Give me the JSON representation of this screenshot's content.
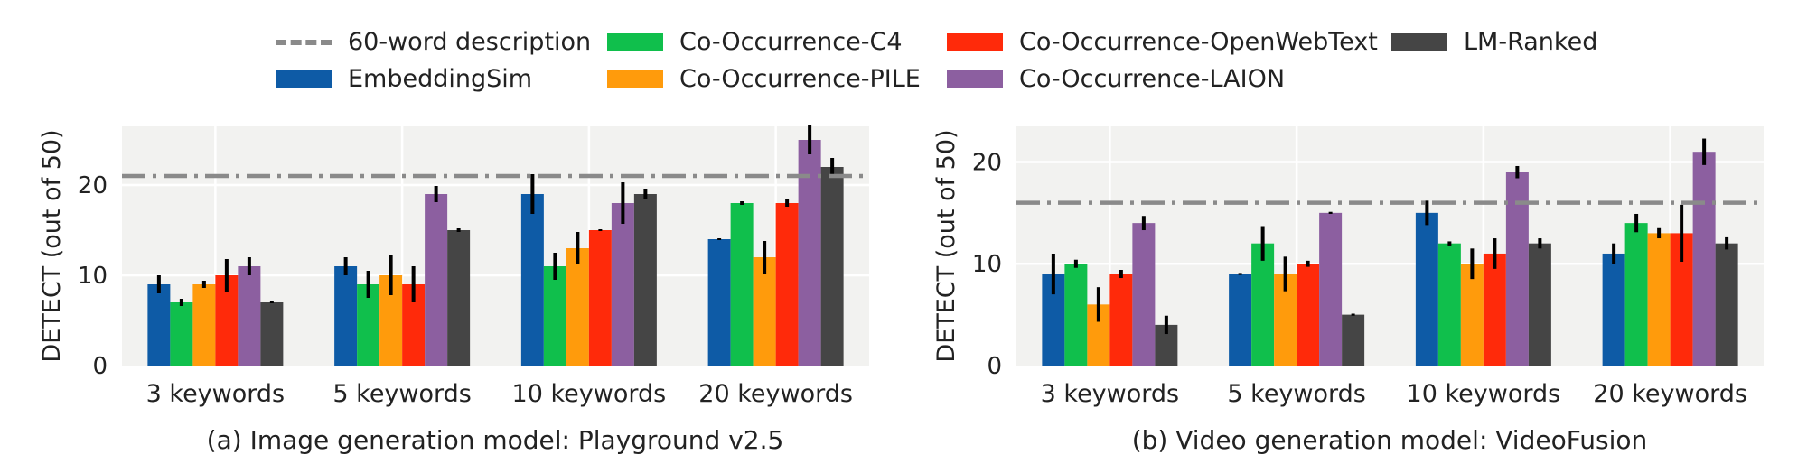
{
  "legend": {
    "items": [
      {
        "label": "60-word description",
        "kind": "line",
        "color": "#8a8a8a"
      },
      {
        "label": "EmbeddingSim",
        "kind": "box",
        "color": "#0e5ba6"
      },
      {
        "label": "Co-Occurrence-C4",
        "kind": "box",
        "color": "#10bf4c"
      },
      {
        "label": "Co-Occurrence-PILE",
        "kind": "box",
        "color": "#ff9b0c"
      },
      {
        "label": "Co-Occurrence-OpenWebText",
        "kind": "box",
        "color": "#ff2a0a"
      },
      {
        "label": "Co-Occurrence-LAION",
        "kind": "box",
        "color": "#8c5fa0"
      },
      {
        "label": "LM-Ranked",
        "kind": "box",
        "color": "#454545"
      }
    ]
  },
  "chart_data": [
    {
      "type": "bar",
      "caption": "(a) Image generation model: Playground v2.5",
      "ylabel": "DETECT (out of 50)",
      "ylim": [
        0,
        26.5
      ],
      "yticks": [
        0,
        10,
        20
      ],
      "categories": [
        "3 keywords",
        "5 keywords",
        "10 keywords",
        "20 keywords"
      ],
      "reference_line": {
        "name": "60-word description",
        "value": 21
      },
      "series": [
        {
          "name": "EmbeddingSim",
          "color": "#0e5ba6",
          "values": [
            9,
            11,
            19,
            14
          ],
          "errors": [
            1,
            1,
            2.2,
            0.1
          ]
        },
        {
          "name": "Co-Occurrence-C4",
          "color": "#10bf4c",
          "values": [
            7,
            9,
            11,
            18
          ],
          "errors": [
            0.4,
            1.5,
            1.5,
            0.2
          ]
        },
        {
          "name": "Co-Occurrence-PILE",
          "color": "#ff9b0c",
          "values": [
            9,
            10,
            13,
            12
          ],
          "errors": [
            0.4,
            2.2,
            1.8,
            1.8
          ]
        },
        {
          "name": "Co-Occurrence-OpenWebText",
          "color": "#ff2a0a",
          "values": [
            10,
            9,
            15,
            18
          ],
          "errors": [
            1.8,
            2,
            0.1,
            0.4
          ]
        },
        {
          "name": "Co-Occurrence-LAION",
          "color": "#8c5fa0",
          "values": [
            11,
            19,
            18,
            25
          ],
          "errors": [
            1,
            0.9,
            2.3,
            1.6
          ]
        },
        {
          "name": "LM-Ranked",
          "color": "#454545",
          "values": [
            7,
            15,
            19,
            22
          ],
          "errors": [
            0.1,
            0.2,
            0.6,
            1
          ]
        }
      ]
    },
    {
      "type": "bar",
      "caption": "(b) Video generation model: VideoFusion",
      "ylabel": "DETECT (out of 50)",
      "ylim": [
        0,
        23.5
      ],
      "yticks": [
        0,
        10,
        20
      ],
      "categories": [
        "3 keywords",
        "5 keywords",
        "10 keywords",
        "20 keywords"
      ],
      "reference_line": {
        "name": "60-word description",
        "value": 16
      },
      "series": [
        {
          "name": "EmbeddingSim",
          "color": "#0e5ba6",
          "values": [
            9,
            9,
            15,
            11
          ],
          "errors": [
            2,
            0.1,
            1.2,
            1
          ]
        },
        {
          "name": "Co-Occurrence-C4",
          "color": "#10bf4c",
          "values": [
            10,
            12,
            12,
            14
          ],
          "errors": [
            0.4,
            1.7,
            0.2,
            0.9
          ]
        },
        {
          "name": "Co-Occurrence-PILE",
          "color": "#ff9b0c",
          "values": [
            6,
            9,
            10,
            13
          ],
          "errors": [
            1.7,
            1.7,
            1.5,
            0.5
          ]
        },
        {
          "name": "Co-Occurrence-OpenWebText",
          "color": "#ff2a0a",
          "values": [
            9,
            10,
            11,
            13
          ],
          "errors": [
            0.4,
            0.3,
            1.5,
            2.8
          ]
        },
        {
          "name": "Co-Occurrence-LAION",
          "color": "#8c5fa0",
          "values": [
            14,
            15,
            19,
            21
          ],
          "errors": [
            0.7,
            0.1,
            0.6,
            1.3
          ]
        },
        {
          "name": "LM-Ranked",
          "color": "#454545",
          "values": [
            4,
            5,
            12,
            12
          ],
          "errors": [
            0.9,
            0.1,
            0.5,
            0.6
          ]
        }
      ]
    }
  ]
}
